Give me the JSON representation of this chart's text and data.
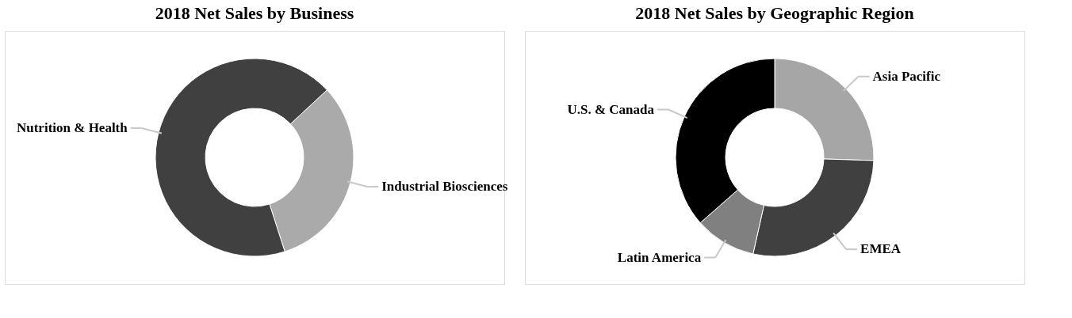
{
  "chart_data": [
    {
      "type": "donut",
      "title": "2018 Net Sales by Business",
      "categories": [
        "Industrial Biosciences",
        "Nutrition & Health"
      ],
      "values": [
        32,
        68
      ],
      "colors": [
        "#aaaaaa",
        "#404040"
      ]
    },
    {
      "type": "donut",
      "title": "2018 Net Sales by Geographic Region",
      "categories": [
        "Asia Pacific",
        "EMEA",
        "Latin America",
        "U.S. & Canada"
      ],
      "values": [
        25.5,
        28,
        10,
        36.5
      ],
      "colors": [
        "#a6a6a6",
        "#404040",
        "#808080",
        "#000000"
      ]
    }
  ]
}
